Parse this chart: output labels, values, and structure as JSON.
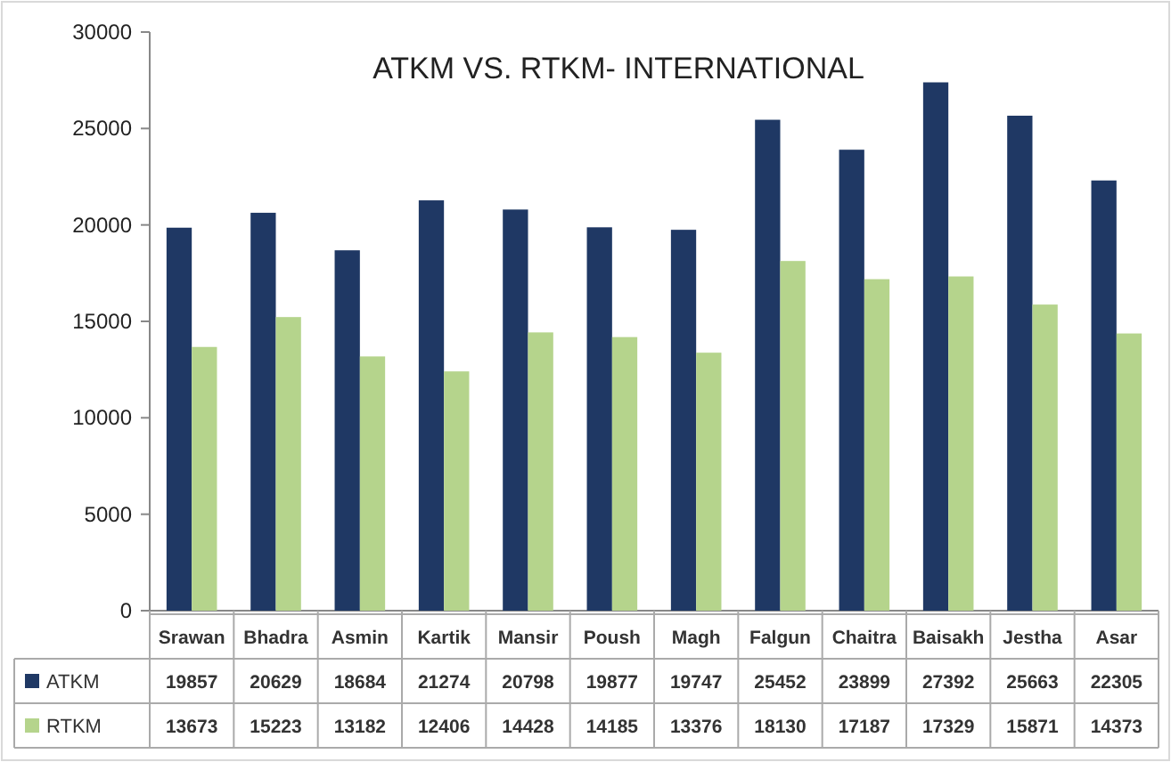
{
  "chart_data": {
    "type": "bar",
    "title": "ATKM VS. RTKM- INTERNATIONAL",
    "categories": [
      "Srawan",
      "Bhadra",
      "Asmin",
      "Kartik",
      "Mansir",
      "Poush",
      "Magh",
      "Falgun",
      "Chaitra",
      "Baisakh",
      "Jestha",
      "Asar"
    ],
    "series": [
      {
        "name": "ATKM",
        "color": "#1f3864",
        "values": [
          19857,
          20629,
          18684,
          21274,
          20798,
          19877,
          19747,
          25452,
          23899,
          27392,
          25663,
          22305
        ]
      },
      {
        "name": "RTKM",
        "color": "#b5d48c",
        "values": [
          13673,
          15223,
          13182,
          12406,
          14428,
          14185,
          13376,
          18130,
          17187,
          17329,
          15871,
          14373
        ]
      }
    ],
    "ylim": [
      0,
      30000
    ],
    "yticks": [
      0,
      5000,
      10000,
      15000,
      20000,
      25000,
      30000
    ],
    "data_labels": true,
    "legend": "bottom"
  }
}
